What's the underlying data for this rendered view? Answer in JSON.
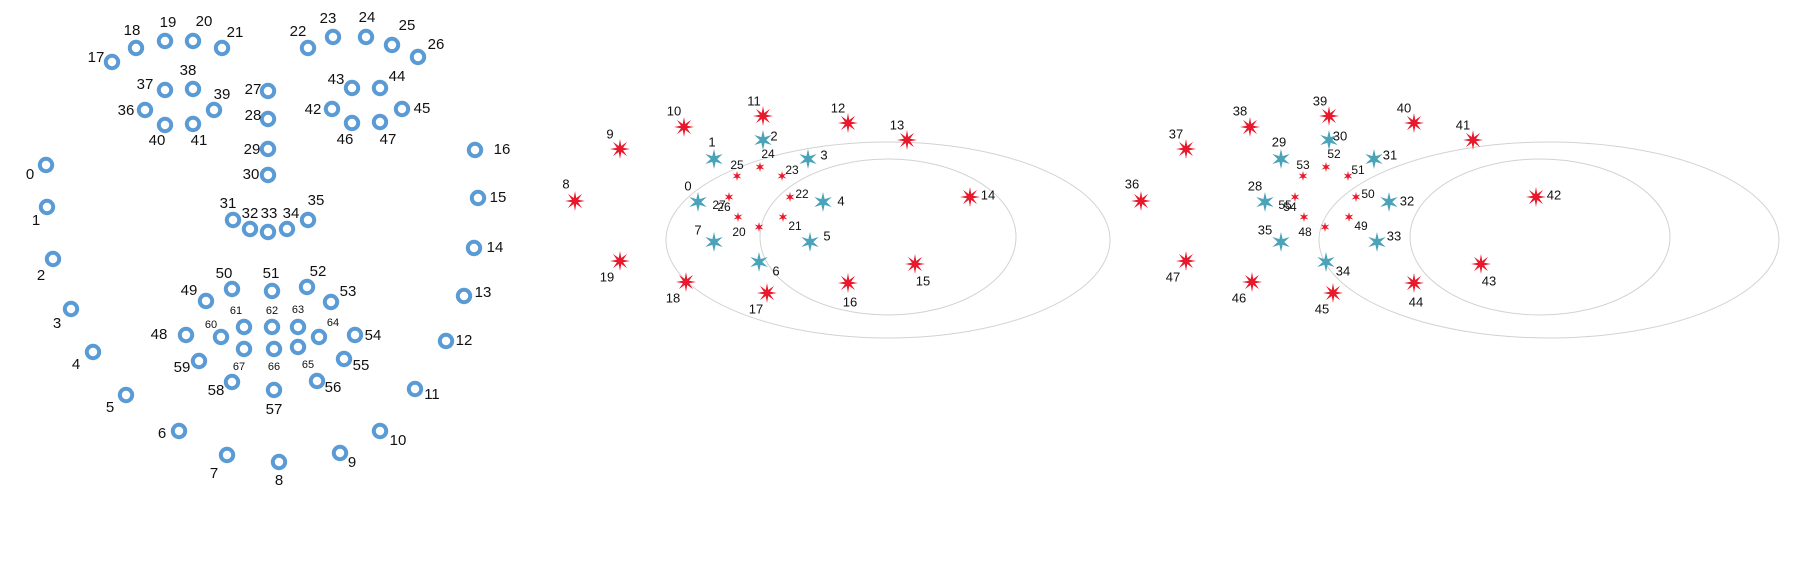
{
  "colors": {
    "landmark": "#5b9bd5",
    "outer_star": "#e8192c",
    "iris_star": "#4aa3b8",
    "pupil_star": "#e8192c",
    "ellipse": "#d2d2d2"
  },
  "face": {
    "landmarks": [
      "0",
      "1",
      "2",
      "3",
      "4",
      "5",
      "6",
      "7",
      "8",
      "9",
      "10",
      "11",
      "12",
      "13",
      "14",
      "15",
      "16",
      "17",
      "18",
      "19",
      "20",
      "21",
      "22",
      "23",
      "24",
      "25",
      "26",
      "27",
      "28",
      "29",
      "30",
      "31",
      "32",
      "33",
      "34",
      "35",
      "36",
      "37",
      "38",
      "39",
      "40",
      "41",
      "42",
      "43",
      "44",
      "45",
      "46",
      "47",
      "48",
      "49",
      "50",
      "51",
      "52",
      "53",
      "54",
      "55",
      "56",
      "57",
      "58",
      "59",
      "60",
      "61",
      "62",
      "63",
      "64",
      "65",
      "66",
      "67"
    ]
  },
  "eye_left": {
    "outer": [
      "8",
      "9",
      "10",
      "11",
      "12",
      "13",
      "14",
      "15",
      "16",
      "17",
      "18",
      "19"
    ],
    "iris": [
      "0",
      "1",
      "2",
      "3",
      "4",
      "5",
      "6",
      "7"
    ],
    "pupil": [
      "20",
      "21",
      "22",
      "23",
      "24",
      "25",
      "26",
      "27"
    ]
  },
  "eye_right": {
    "outer": [
      "36",
      "37",
      "38",
      "39",
      "40",
      "41",
      "42",
      "43",
      "44",
      "45",
      "46",
      "47"
    ],
    "iris": [
      "28",
      "29",
      "30",
      "31",
      "32",
      "33",
      "34",
      "35"
    ],
    "pupil": [
      "48",
      "49",
      "50",
      "51",
      "52",
      "53",
      "54",
      "55"
    ]
  }
}
